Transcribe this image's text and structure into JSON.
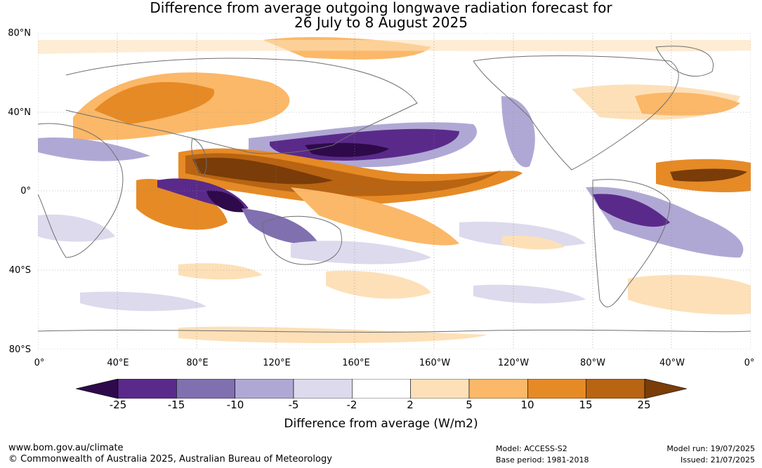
{
  "title": {
    "line1": "Difference from average outgoing longwave radiation forecast for",
    "line2": "26 July to 8 August 2025"
  },
  "map": {
    "lat_labels": [
      "80°N",
      "40°N",
      "0°",
      "40°S",
      "80°S"
    ],
    "lon_labels": [
      "0°",
      "40°E",
      "80°E",
      "120°E",
      "160°E",
      "160°W",
      "120°W",
      "80°W",
      "40°W",
      "0°"
    ],
    "colors": {
      "land_outline": "#6e6e6e",
      "grid": "#888888",
      "neg_25": "#2e0a4a",
      "neg_15": "#5a2a8a",
      "neg_10": "#8070b0",
      "neg_5": "#b0a8d4",
      "neg_2": "#dcdaec",
      "pos_2": "#fde0b8",
      "pos_5": "#fbb868",
      "pos_10": "#e68a26",
      "pos_15": "#b86412",
      "pos_25": "#7a3c08"
    }
  },
  "legend": {
    "ticks": [
      "-25",
      "-15",
      "-10",
      "-5",
      "-2",
      "2",
      "5",
      "10",
      "15",
      "25"
    ],
    "title": "Difference from average (W/m2)",
    "colors": [
      "#2e0a4a",
      "#5a2a8a",
      "#8070b0",
      "#b0a8d4",
      "#dcdaec",
      "#ffffff",
      "#fde0b8",
      "#fbb868",
      "#e68a26",
      "#b86412",
      "#7a3c08"
    ]
  },
  "footer": {
    "url": "www.bom.gov.au/climate",
    "copyright": "© Commonwealth of Australia 2025, Australian Bureau of Meteorology",
    "model": "Model: ACCESS-S2",
    "base_period": "Base period: 1981-2018",
    "model_run": "Model run: 19/07/2025",
    "issued": "Issued: 21/07/2025"
  }
}
